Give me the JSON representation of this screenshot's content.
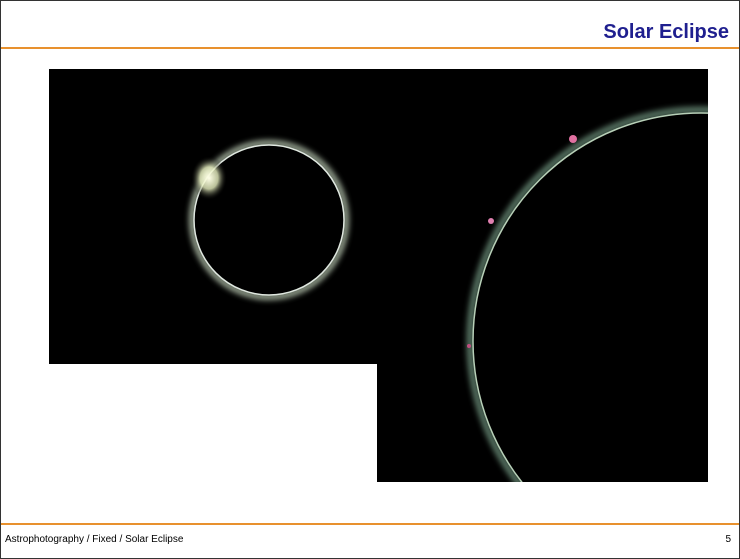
{
  "header": {
    "title": "Solar Eclipse"
  },
  "footer": {
    "breadcrumb": "Astrophotography / Fixed / Solar Eclipse",
    "page": 5
  }
}
